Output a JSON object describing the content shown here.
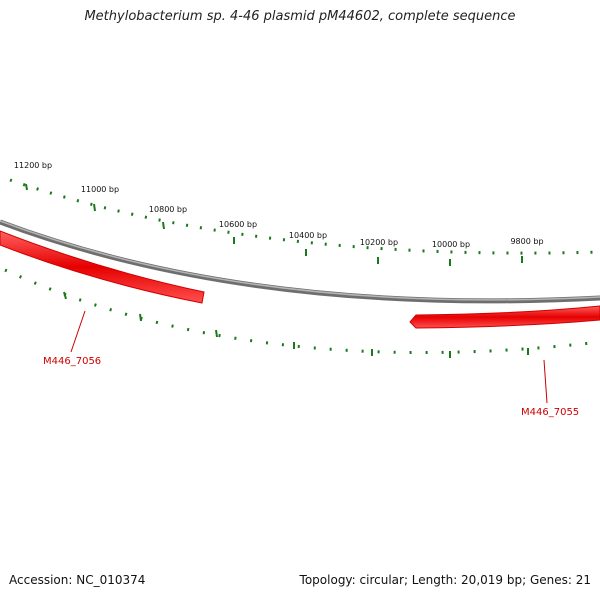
{
  "title": "Methylobacterium sp. 4-46 plasmid pM44602, complete sequence",
  "footer": {
    "accession": "Accession: NC_010374",
    "summary": "Topology: circular; Length: 20,019 bp; Genes: 21"
  },
  "map": {
    "length_bp": 20019,
    "ticks": [
      {
        "bp": 9800,
        "label": "9800 bp"
      },
      {
        "bp": 10000,
        "label": "10000 bp"
      },
      {
        "bp": 10200,
        "label": "10200 bp"
      },
      {
        "bp": 10400,
        "label": "10400 bp"
      },
      {
        "bp": 10600,
        "label": "10600 bp"
      },
      {
        "bp": 10800,
        "label": "10800 bp"
      },
      {
        "bp": 11000,
        "label": "11000 bp"
      },
      {
        "bp": 11200,
        "label": "11200 bp"
      }
    ],
    "genes": [
      {
        "name": "M446_7056",
        "color": "#ee0000"
      },
      {
        "name": "M446_7055",
        "color": "#ee0000"
      }
    ],
    "colors": {
      "backbone": "#888888",
      "ticks": "#1a7a1a",
      "gene": "#ee0000",
      "gene_label": "#cc0000"
    }
  }
}
